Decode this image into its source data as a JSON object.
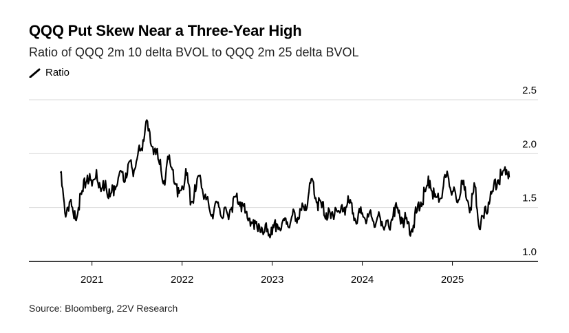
{
  "title": "QQQ Put Skew Near a Three-Year High",
  "subtitle": "Ratio of QQQ 2m 10 delta BVOL to QQQ 2m 25 delta BVOL",
  "source": "Source: Bloomberg, 22V Research",
  "colors": {
    "line": "#000000",
    "grid": "#d9d9d9",
    "axis": "#000000"
  },
  "legend": {
    "icon": "diagonal-line-icon",
    "label": "Ratio"
  },
  "chart_data": {
    "type": "line",
    "title": "QQQ Put Skew Near a Three-Year High",
    "subtitle": "Ratio of QQQ 2m 10 delta BVOL to QQQ 2m 25 delta BVOL",
    "ylabel": "",
    "xlabel": "",
    "ylim": [
      1.0,
      2.5
    ],
    "yticks": [
      "2.5",
      "2.0",
      "1.5",
      "1.0"
    ],
    "xticks": [
      "2021",
      "2022",
      "2023",
      "2024",
      "2025"
    ],
    "grid": "horizontal",
    "legend_position": "top-left",
    "series": [
      {
        "name": "Ratio",
        "x": [
          2020.65,
          2020.7,
          2020.75,
          2020.8,
          2020.85,
          2020.9,
          2020.95,
          2021.0,
          2021.05,
          2021.1,
          2021.15,
          2021.2,
          2021.25,
          2021.3,
          2021.35,
          2021.4,
          2021.45,
          2021.5,
          2021.55,
          2021.6,
          2021.65,
          2021.7,
          2021.75,
          2021.8,
          2021.85,
          2021.9,
          2021.95,
          2022.0,
          2022.05,
          2022.1,
          2022.15,
          2022.2,
          2022.25,
          2022.3,
          2022.35,
          2022.4,
          2022.45,
          2022.5,
          2022.55,
          2022.6,
          2022.65,
          2022.7,
          2022.75,
          2022.8,
          2022.85,
          2022.9,
          2022.95,
          2023.0,
          2023.05,
          2023.1,
          2023.15,
          2023.2,
          2023.25,
          2023.3,
          2023.35,
          2023.4,
          2023.45,
          2023.5,
          2023.55,
          2023.6,
          2023.65,
          2023.7,
          2023.75,
          2023.8,
          2023.85,
          2023.9,
          2023.95,
          2024.0,
          2024.05,
          2024.1,
          2024.15,
          2024.2,
          2024.25,
          2024.3,
          2024.35,
          2024.4,
          2024.45,
          2024.5,
          2024.55,
          2024.6,
          2024.65,
          2024.7,
          2024.75,
          2024.8,
          2024.85,
          2024.9,
          2024.95,
          2025.0,
          2025.05,
          2025.1,
          2025.15,
          2025.2,
          2025.25,
          2025.3,
          2025.35,
          2025.4,
          2025.45,
          2025.5,
          2025.55,
          2025.6,
          2025.63
        ],
        "values": [
          1.82,
          1.45,
          1.55,
          1.4,
          1.5,
          1.65,
          1.8,
          1.7,
          1.85,
          1.65,
          1.75,
          1.6,
          1.7,
          1.8,
          1.75,
          1.9,
          1.85,
          1.95,
          2.05,
          2.3,
          2.1,
          2.05,
          1.9,
          1.75,
          1.95,
          1.85,
          1.6,
          1.7,
          1.8,
          1.55,
          1.65,
          1.8,
          1.6,
          1.5,
          1.45,
          1.55,
          1.4,
          1.45,
          1.5,
          1.6,
          1.55,
          1.45,
          1.4,
          1.3,
          1.35,
          1.25,
          1.3,
          1.25,
          1.35,
          1.3,
          1.4,
          1.35,
          1.45,
          1.4,
          1.5,
          1.6,
          1.75,
          1.55,
          1.5,
          1.45,
          1.4,
          1.5,
          1.45,
          1.5,
          1.55,
          1.45,
          1.4,
          1.45,
          1.38,
          1.42,
          1.35,
          1.4,
          1.32,
          1.3,
          1.5,
          1.45,
          1.4,
          1.35,
          1.3,
          1.45,
          1.55,
          1.65,
          1.75,
          1.6,
          1.55,
          1.7,
          1.8,
          1.65,
          1.55,
          1.75,
          1.6,
          1.5,
          1.7,
          1.3,
          1.4,
          1.55,
          1.65,
          1.75,
          1.8,
          1.85,
          1.78
        ]
      }
    ]
  }
}
